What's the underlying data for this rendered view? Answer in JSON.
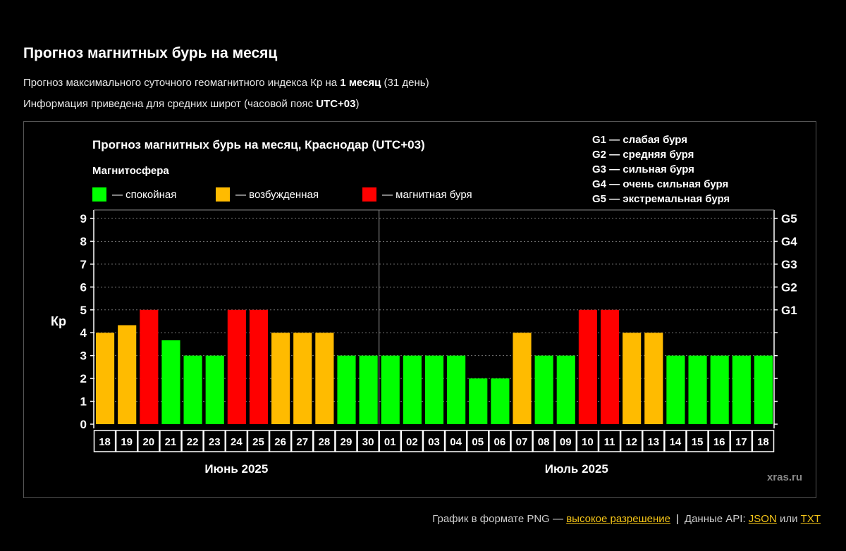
{
  "page": {
    "title": "Прогноз магнитных бурь на месяц",
    "subtitle1_pre": "Прогноз максимального суточного геомагнитного индекса Кр на ",
    "subtitle1_bold": "1 месяц",
    "subtitle1_post": " (31 день)",
    "subtitle2_pre": "Информация приведена для средних широт (часовой пояс ",
    "subtitle2_bold": "UTC+03",
    "subtitle2_post": ")"
  },
  "colors": {
    "calm": "#00ff00",
    "excited": "#ffbb00",
    "storm": "#ff0000",
    "background": "#000000"
  },
  "legend": {
    "heading": "Магнитосфера",
    "calm": "— спокойная",
    "excited": "— возбужденная",
    "storm": "— магнитная буря"
  },
  "g_legend": [
    "G1 — слабая буря",
    "G2 — средняя буря",
    "G3 — сильная буря",
    "G4 — очень сильная буря",
    "G5 — экстремальная буря"
  ],
  "chart_data": {
    "type": "bar",
    "title": "Прогноз магнитных бурь на месяц, Краснодар (UTC+03)",
    "ylabel": "Кр",
    "ylim": [
      0,
      9
    ],
    "yticks": [
      0,
      1,
      2,
      3,
      4,
      5,
      6,
      7,
      8,
      9
    ],
    "right_axis": [
      "G1",
      "G2",
      "G3",
      "G4",
      "G5"
    ],
    "grid": true,
    "categories": [
      "18",
      "19",
      "20",
      "21",
      "22",
      "23",
      "24",
      "25",
      "26",
      "27",
      "28",
      "29",
      "30",
      "01",
      "02",
      "03",
      "04",
      "05",
      "06",
      "07",
      "08",
      "09",
      "10",
      "11",
      "12",
      "13",
      "14",
      "15",
      "16",
      "17",
      "18"
    ],
    "values": [
      4,
      4.33,
      5,
      3.67,
      3,
      3,
      5,
      5,
      4,
      4,
      4,
      3,
      3,
      3,
      3,
      3,
      3,
      2,
      2,
      4,
      3,
      3,
      5,
      5,
      4,
      4,
      3,
      3,
      3,
      3,
      3
    ],
    "status": [
      "excited",
      "excited",
      "storm",
      "calm",
      "calm",
      "calm",
      "storm",
      "storm",
      "excited",
      "excited",
      "excited",
      "calm",
      "calm",
      "calm",
      "calm",
      "calm",
      "calm",
      "calm",
      "calm",
      "excited",
      "calm",
      "calm",
      "storm",
      "storm",
      "excited",
      "excited",
      "calm",
      "calm",
      "calm",
      "calm",
      "calm"
    ],
    "month_groups": [
      {
        "label": "Июнь 2025",
        "count": 13
      },
      {
        "label": "Июль 2025",
        "count": 18
      }
    ],
    "watermark": "xras.ru"
  },
  "footer": {
    "text": "График в формате PNG — ",
    "link_hires": "высокое разрешение",
    "separator": "|",
    "api_text": "Данные API: ",
    "link_json": "JSON",
    "or_text": " или ",
    "link_txt": "TXT"
  }
}
